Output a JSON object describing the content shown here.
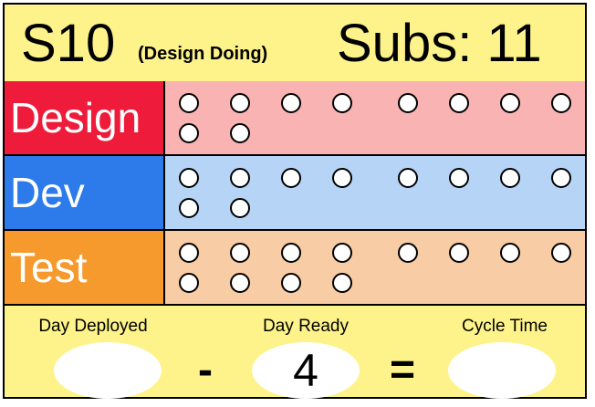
{
  "header": {
    "story_id": "S10",
    "status": "(Design Doing)",
    "subs_label": "Subs: 11"
  },
  "rows": [
    {
      "label": "Design",
      "color": "#ee1c3a",
      "bg": "#f9b3b2",
      "dots_top": 8,
      "dots_bottom": 2
    },
    {
      "label": "Dev",
      "color": "#2d7bea",
      "bg": "#b6d5f6",
      "dots_top": 8,
      "dots_bottom": 2
    },
    {
      "label": "Test",
      "color": "#f69a2d",
      "bg": "#f8cca4",
      "dots_top": 8,
      "dots_bottom": 4
    }
  ],
  "footer": {
    "day_deployed_label": "Day Deployed",
    "day_deployed_value": "",
    "minus": "-",
    "day_ready_label": "Day Ready",
    "day_ready_value": "4",
    "equals": "=",
    "cycle_time_label": "Cycle Time",
    "cycle_time_value": ""
  }
}
